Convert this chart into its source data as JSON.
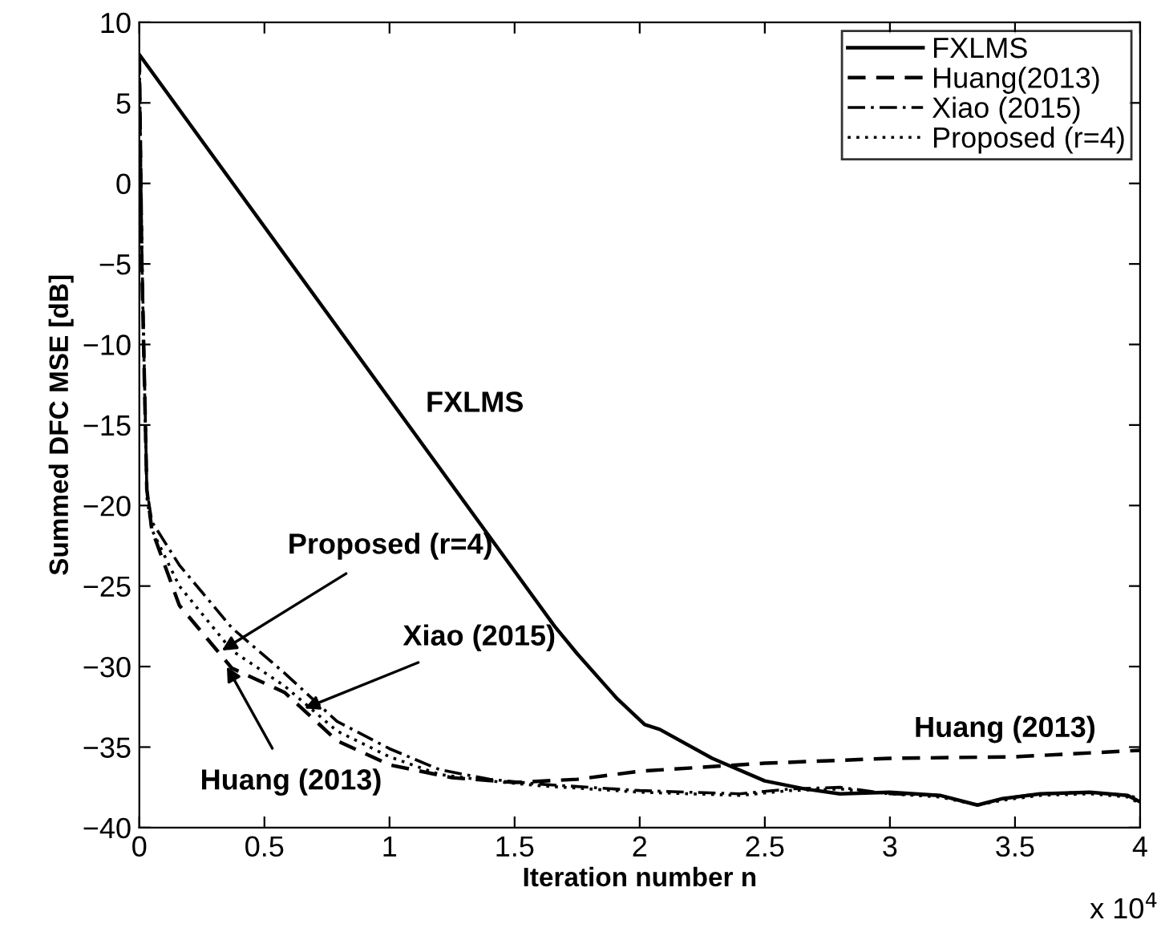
{
  "chart_data": {
    "type": "line",
    "xlabel": "Iteration number n",
    "ylabel": "Summed DFC MSE [dB]",
    "xlim": [
      0,
      4
    ],
    "xticks": [
      0,
      0.5,
      1,
      1.5,
      2,
      2.5,
      3,
      3.5,
      4
    ],
    "ylim": [
      -40,
      10
    ],
    "yticks": [
      -40,
      -35,
      -30,
      -25,
      -20,
      -15,
      -10,
      -5,
      0,
      5,
      10
    ],
    "grid": false,
    "legend": "top right",
    "marker": "none",
    "series": [
      {
        "name": "FXLMS",
        "color": "#000000",
        "line_style": "solid",
        "x": [
          0,
          1.66,
          1.75,
          1.91,
          2.02,
          2.08,
          2.29,
          2.5,
          2.66,
          2.8,
          3.0,
          3.2,
          3.35,
          3.45,
          3.6,
          3.8,
          3.95,
          4.0
        ],
        "values": [
          8,
          -27.5,
          -29.2,
          -32,
          -33.6,
          -33.9,
          -35.7,
          -37.1,
          -37.6,
          -37.9,
          -37.8,
          -38.0,
          -38.6,
          -38.2,
          -37.9,
          -37.8,
          -38.0,
          -38.4
        ]
      },
      {
        "name": "Huang(2013)",
        "color": "#000000",
        "line_style": "dashed",
        "x": [
          0,
          0.01,
          0.03,
          0.05,
          0.16,
          0.37,
          0.58,
          0.79,
          1.0,
          1.25,
          1.5,
          1.75,
          2.0,
          2.5,
          3.0,
          3.5,
          4.0
        ],
        "values": [
          8,
          -5,
          -19,
          -21.5,
          -26.2,
          -30.1,
          -31.6,
          -34.6,
          -36.1,
          -36.9,
          -37.2,
          -37.0,
          -36.5,
          -36.0,
          -35.7,
          -35.6,
          -35.2
        ]
      },
      {
        "name": "Xiao (2015)",
        "color": "#000000",
        "line_style": "dashdot",
        "x": [
          0,
          0.01,
          0.03,
          0.05,
          0.16,
          0.37,
          0.58,
          0.79,
          1.0,
          1.2,
          1.4,
          1.6,
          1.8,
          2.0,
          2.2,
          2.4,
          2.6,
          2.8,
          3.0,
          3.2,
          3.35,
          3.45,
          3.6,
          3.8,
          3.95,
          4.0
        ],
        "values": [
          8,
          -4,
          -19,
          -21,
          -23.7,
          -27.6,
          -30.4,
          -33.4,
          -35.1,
          -36.4,
          -37.0,
          -37.3,
          -37.5,
          -37.7,
          -37.8,
          -37.9,
          -37.6,
          -37.5,
          -37.9,
          -38.0,
          -38.6,
          -38.2,
          -37.9,
          -37.8,
          -38.0,
          -38.2
        ]
      },
      {
        "name": "Proposed (r=4)",
        "color": "#000000",
        "line_style": "dotted",
        "x": [
          0,
          0.01,
          0.03,
          0.05,
          0.16,
          0.37,
          0.58,
          0.79,
          1.0,
          1.2,
          1.4,
          1.6,
          1.8,
          2.0,
          2.2,
          2.4,
          2.6,
          2.8,
          3.0,
          3.2,
          3.35,
          3.45,
          3.6,
          3.8,
          3.95,
          4.0
        ],
        "values": [
          8,
          -4.5,
          -19.5,
          -21.5,
          -25,
          -29,
          -31.2,
          -34.0,
          -35.6,
          -36.7,
          -37.1,
          -37.4,
          -37.6,
          -37.8,
          -37.9,
          -38.0,
          -37.7,
          -37.6,
          -37.9,
          -38.1,
          -38.6,
          -38.3,
          -38.0,
          -37.9,
          -38.1,
          -38.5
        ]
      }
    ],
    "annotations": [
      {
        "text": "FXLMS",
        "x": 1.2,
        "y": -17.8
      },
      {
        "text": "Huang (2013)",
        "x": 3.46,
        "y": -35.6
      },
      {
        "text": "Proposed (r=4)",
        "x": 0.33,
        "y": -29
      },
      {
        "text": "Xiao (2015)",
        "x": 0.66,
        "y": -32.6
      },
      {
        "text": "Huang (2013)",
        "x": 0.35,
        "y": -30
      },
      "x 10$^{4}$"
    ]
  }
}
